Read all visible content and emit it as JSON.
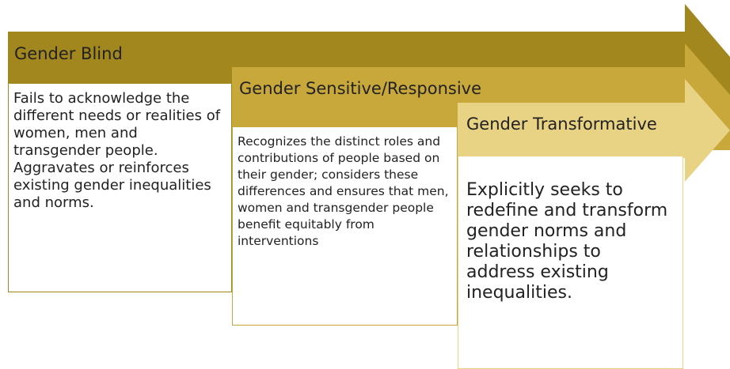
{
  "stages": [
    {
      "title": "Gender Blind",
      "description": "Fails to acknowledge the different needs or realities of women, men and transgender people. Aggravates or reinforces existing gender inequalities and norms."
    },
    {
      "title": "Gender Sensitive/Responsive",
      "description": "Recognizes the distinct roles and contributions of people based on their gender; considers these differences and ensures that men, women and transgender people benefit equitably from interventions"
    },
    {
      "title": "Gender Transformative",
      "description": "Explicitly seeks to redefine and transform gender norms and relationships to address existing inequalities."
    }
  ]
}
